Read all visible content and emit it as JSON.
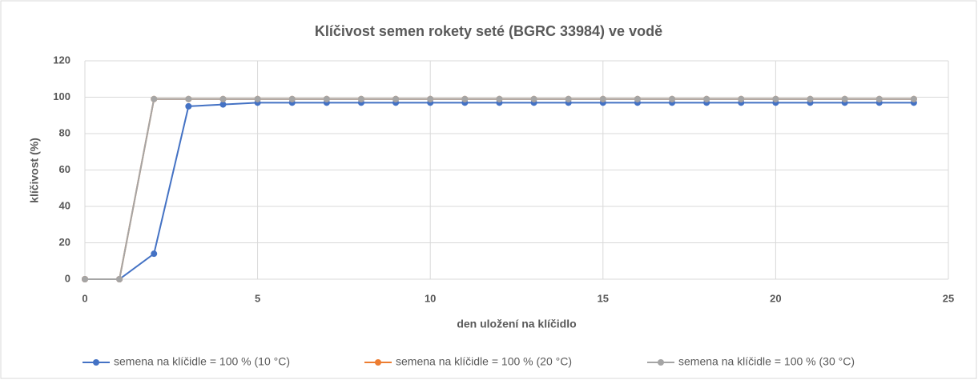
{
  "chart_data": {
    "type": "line",
    "title": "Klíčivost semen rokety seté (BGRC 33984) ve vodě",
    "x_label": "den uložení na klíčidlo",
    "y_label": "klíčivost (%)",
    "x": [
      0,
      1,
      2,
      3,
      4,
      5,
      6,
      7,
      8,
      9,
      10,
      11,
      12,
      13,
      14,
      15,
      16,
      17,
      18,
      19,
      20,
      21,
      22,
      23,
      24
    ],
    "series": [
      {
        "name": "semena na klíčidle = 100 % (10 °C)",
        "color": "#4472c4",
        "values": [
          0,
          0,
          14,
          95,
          96,
          97,
          97,
          97,
          97,
          97,
          97,
          97,
          97,
          97,
          97,
          97,
          97,
          97,
          97,
          97,
          97,
          97,
          97,
          97,
          97
        ]
      },
      {
        "name": "semena na klíčidle = 100 % (20 °C)",
        "color": "#ed7d31",
        "values": [
          0,
          0,
          99,
          99,
          99,
          99,
          99,
          99,
          99,
          99,
          99,
          99,
          99,
          99,
          99,
          99,
          99,
          99,
          99,
          99,
          99,
          99,
          99,
          99,
          99
        ]
      },
      {
        "name": "semena na klíčidle = 100 % (30 °C)",
        "color": "#a5a5a5",
        "values": [
          0,
          0,
          99,
          99,
          99,
          99,
          99,
          99,
          99,
          99,
          99,
          99,
          99,
          99,
          99,
          99,
          99,
          99,
          99,
          99,
          99,
          99,
          99,
          99,
          99
        ]
      }
    ],
    "xlim": [
      0,
      25
    ],
    "xticks": [
      0,
      5,
      10,
      15,
      20,
      25
    ],
    "ylim": [
      0,
      120
    ],
    "yticks": [
      0,
      20,
      40,
      60,
      80,
      100,
      120
    ],
    "grid": true,
    "legend": "bottom"
  }
}
